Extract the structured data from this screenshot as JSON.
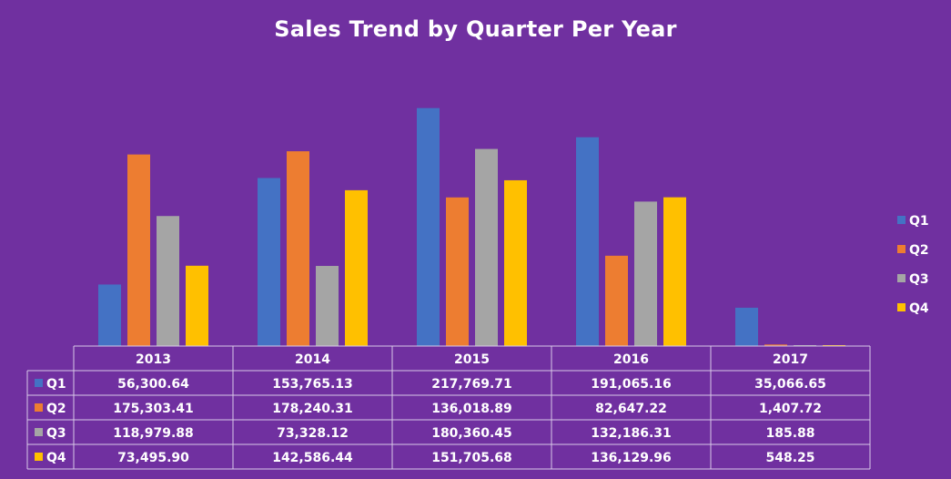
{
  "chart_data": {
    "type": "bar",
    "title": "Sales Trend by Quarter Per Year",
    "categories": [
      "2013",
      "2014",
      "2015",
      "2016",
      "2017"
    ],
    "series": [
      {
        "name": "Q1",
        "color": "#4472c4",
        "values": [
          56300.64,
          153765.13,
          217769.71,
          191065.16,
          35066.65
        ],
        "labels": [
          "56,300.64",
          "153,765.13",
          "217,769.71",
          "191,065.16",
          "35,066.65"
        ]
      },
      {
        "name": "Q2",
        "color": "#ed7d31",
        "values": [
          175303.41,
          178240.31,
          136018.89,
          82647.22,
          1407.72
        ],
        "labels": [
          "175,303.41",
          "178,240.31",
          "136,018.89",
          "82,647.22",
          "1,407.72"
        ]
      },
      {
        "name": "Q3",
        "color": "#a5a5a5",
        "values": [
          118979.88,
          73328.12,
          180360.45,
          132186.31,
          185.88
        ],
        "labels": [
          "118,979.88",
          "73,328.12",
          "180,360.45",
          "132,186.31",
          "185.88"
        ]
      },
      {
        "name": "Q4",
        "color": "#ffc000",
        "values": [
          73495.9,
          142586.44,
          151705.68,
          136129.96,
          548.25
        ],
        "labels": [
          "73,495.90",
          "142,586.44",
          "151,705.68",
          "136,129.96",
          "548.25"
        ]
      }
    ],
    "ylim": [
      0,
      250000
    ],
    "legend": "right",
    "data_table": true,
    "grid": false
  }
}
